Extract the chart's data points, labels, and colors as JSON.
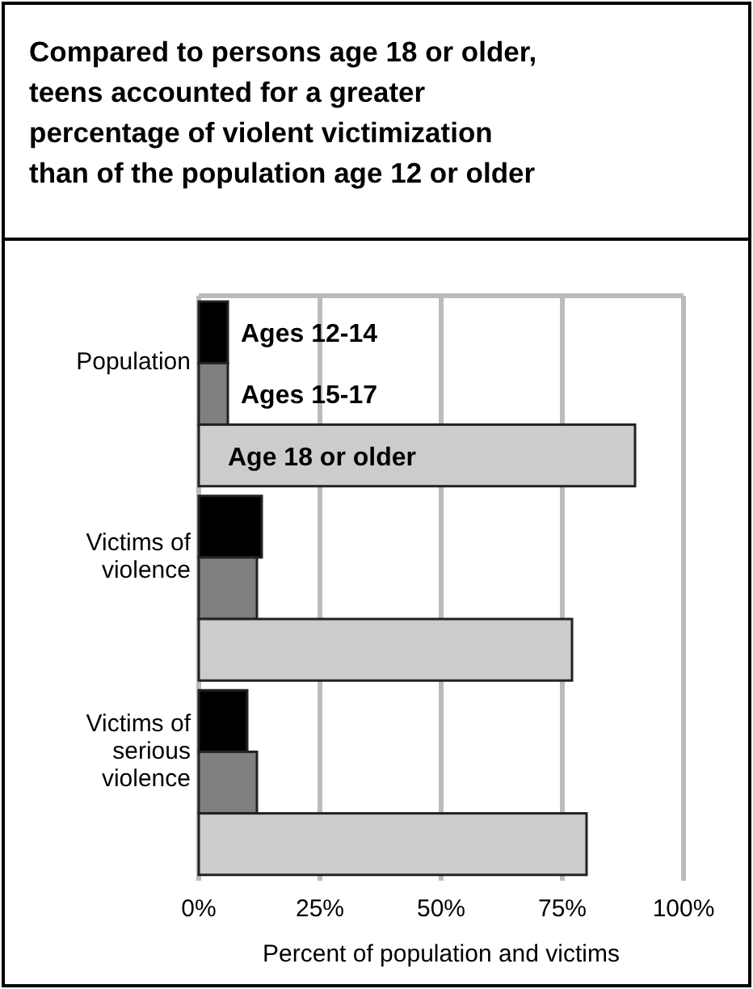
{
  "chart_data": {
    "type": "bar",
    "orientation": "horizontal",
    "title": "Compared to persons age 18 or older, teens accounted for a greater percentage of violent victimization than of the population age 12 or older",
    "categories": [
      "Population",
      "Victims of violence",
      "Victims of serious violence"
    ],
    "series": [
      {
        "name": "Ages 12-14",
        "color": "#000000",
        "values": [
          6,
          13,
          10
        ]
      },
      {
        "name": "Ages 15-17",
        "color": "#808080",
        "values": [
          6,
          12,
          12
        ]
      },
      {
        "name": "Age 18 or older",
        "color": "#cccccc",
        "values": [
          90,
          77,
          80
        ]
      }
    ],
    "xlim": [
      0,
      100
    ],
    "xticks": [
      {
        "value": 0,
        "label": "0%"
      },
      {
        "value": 25,
        "label": "25%"
      },
      {
        "value": 50,
        "label": "50%"
      },
      {
        "value": 75,
        "label": "75%"
      },
      {
        "value": 100,
        "label": "100%"
      }
    ],
    "xlabel": "Percent of population and victims",
    "grid": "x",
    "legend": false
  }
}
